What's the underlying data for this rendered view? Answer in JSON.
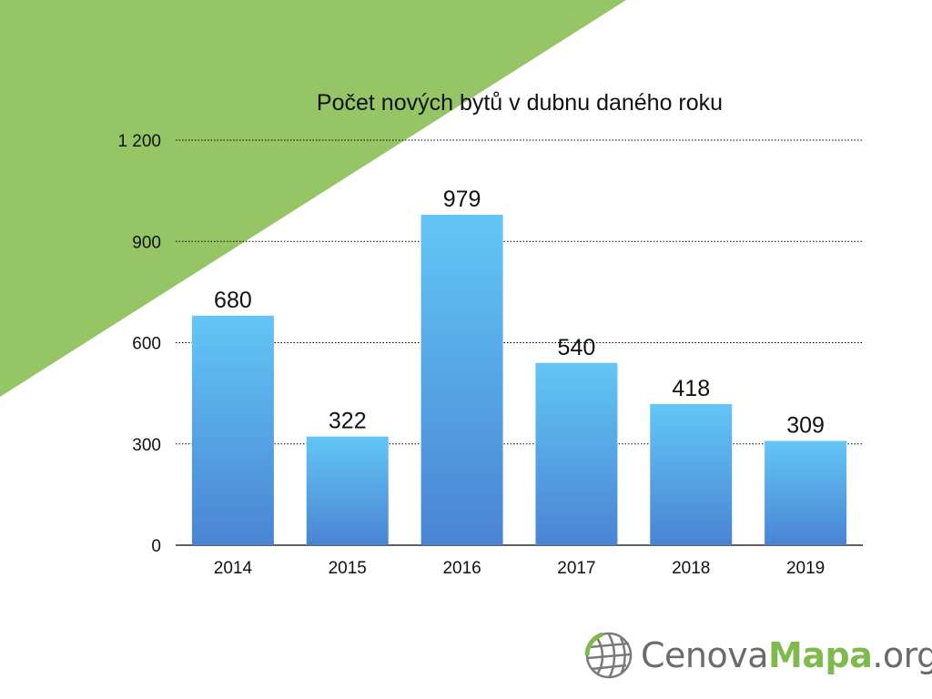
{
  "theme": {
    "accent": "#96c566",
    "bar_top": "#62c6f6",
    "bar_bottom": "#4a84d3",
    "grid": "#000000"
  },
  "chart_data": {
    "type": "bar",
    "title": "Počet nových bytů v dubnu daného roku",
    "xlabel": "",
    "ylabel": "",
    "categories": [
      "2014",
      "2015",
      "2016",
      "2017",
      "2018",
      "2019"
    ],
    "values": [
      680,
      322,
      979,
      540,
      418,
      309
    ],
    "data_labels": [
      "680",
      "322",
      "979",
      "540",
      "418",
      "309"
    ],
    "ylim": [
      0,
      1200
    ],
    "yticks": [
      0,
      300,
      600,
      900,
      1200
    ],
    "ytick_labels": [
      "0",
      "300",
      "600",
      "900",
      "1 200"
    ],
    "grid": true,
    "legend": "none"
  },
  "logo": {
    "part1": "Cenova",
    "part2": "Mapa",
    "part3": ".org"
  }
}
